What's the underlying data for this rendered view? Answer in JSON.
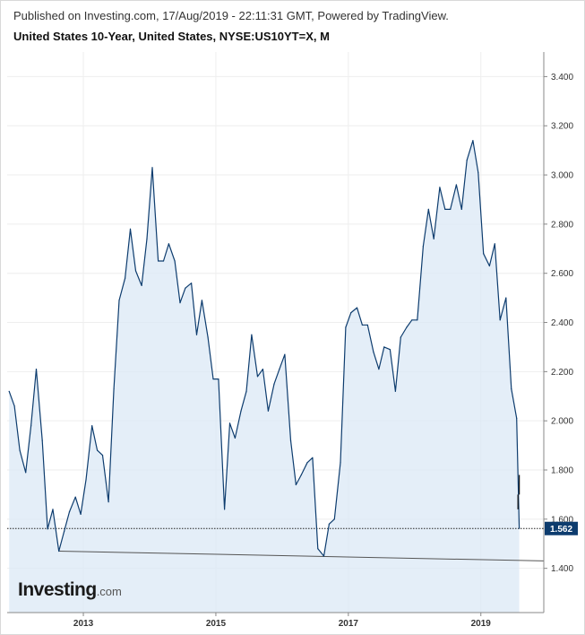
{
  "header": {
    "published": "Published on Investing.com, 17/Aug/2019 - 22:11:31 GMT, Powered by TradingView.",
    "symbol": "United States 10-Year, United States, NYSE:US10YT=X, M"
  },
  "logo": {
    "main": "Investing",
    "suffix": ".com"
  },
  "colors": {
    "line": "#0d3c6e",
    "fill": "#dbe8f6",
    "trendline": "#555555",
    "price_box": "#0d3c6e",
    "grid": "#eeeeee"
  },
  "chart_data": {
    "type": "line",
    "title": "United States 10-Year, United States, NYSE:US10YT=X, M",
    "xlabel": "",
    "ylabel": "",
    "ylim": [
      1.22,
      3.5
    ],
    "xlim": [
      2011.85,
      2019.95
    ],
    "grid": true,
    "y_ticks": [
      "1.400",
      "1.600",
      "1.800",
      "2.000",
      "2.200",
      "2.400",
      "2.600",
      "2.800",
      "3.000",
      "3.200",
      "3.400"
    ],
    "x_ticks": [
      "2013",
      "2015",
      "2017",
      "2019"
    ],
    "last_value": "1.562",
    "series": [
      {
        "x": [
          2011.88,
          2011.96,
          2012.04,
          2012.13,
          2012.21,
          2012.29,
          2012.38,
          2012.46,
          2012.54,
          2012.63,
          2012.71,
          2012.79,
          2012.88,
          2012.96,
          2013.04,
          2013.13,
          2013.21,
          2013.29,
          2013.38,
          2013.46,
          2013.54,
          2013.63,
          2013.71,
          2013.79,
          2013.88,
          2013.96,
          2014.04,
          2014.13,
          2014.21,
          2014.29,
          2014.38,
          2014.46,
          2014.54,
          2014.63,
          2014.71,
          2014.79,
          2014.88,
          2014.96,
          2015.04,
          2015.13,
          2015.21,
          2015.29,
          2015.38,
          2015.46,
          2015.54,
          2015.63,
          2015.71,
          2015.79,
          2015.88,
          2015.96,
          2016.04,
          2016.13,
          2016.21,
          2016.29,
          2016.38,
          2016.46,
          2016.54,
          2016.63,
          2016.71,
          2016.79,
          2016.88,
          2016.96,
          2017.04,
          2017.13,
          2017.21,
          2017.29,
          2017.38,
          2017.46,
          2017.54,
          2017.63,
          2017.71,
          2017.79,
          2017.88,
          2017.96,
          2018.04,
          2018.13,
          2018.21,
          2018.29,
          2018.38,
          2018.46,
          2018.54,
          2018.63,
          2018.71,
          2018.79,
          2018.88,
          2018.96,
          2019.04,
          2019.13,
          2019.21,
          2019.29,
          2019.38,
          2019.46,
          2019.54,
          2019.58
        ],
        "values": [
          2.12,
          2.06,
          1.88,
          1.79,
          1.98,
          2.21,
          1.92,
          1.56,
          1.64,
          1.47,
          1.55,
          1.63,
          1.69,
          1.62,
          1.76,
          1.98,
          1.88,
          1.86,
          1.67,
          2.13,
          2.49,
          2.58,
          2.78,
          2.61,
          2.55,
          2.74,
          3.03,
          2.65,
          2.65,
          2.72,
          2.65,
          2.48,
          2.54,
          2.56,
          2.35,
          2.49,
          2.34,
          2.17,
          2.17,
          1.64,
          1.99,
          1.93,
          2.04,
          2.12,
          2.35,
          2.18,
          2.21,
          2.04,
          2.15,
          2.21,
          2.27,
          1.92,
          1.74,
          1.78,
          1.83,
          1.85,
          1.48,
          1.45,
          1.58,
          1.6,
          1.83,
          2.38,
          2.44,
          2.46,
          2.39,
          2.39,
          2.28,
          2.21,
          2.3,
          2.29,
          2.12,
          2.34,
          2.38,
          2.41,
          2.41,
          2.71,
          2.86,
          2.74,
          2.95,
          2.86,
          2.86,
          2.96,
          2.86,
          3.06,
          3.14,
          3.01,
          2.68,
          2.63,
          2.72,
          2.41,
          2.5,
          2.13,
          2.01,
          1.562
        ]
      }
    ],
    "price_bars": [
      {
        "x": 2019.58,
        "low": 1.7,
        "high": 1.78
      },
      {
        "x": 2019.56,
        "low": 1.64,
        "high": 1.7
      }
    ],
    "trendline": {
      "x": [
        2012.63,
        2019.95
      ],
      "y": [
        1.47,
        1.43
      ]
    },
    "reference_line": 1.562
  }
}
